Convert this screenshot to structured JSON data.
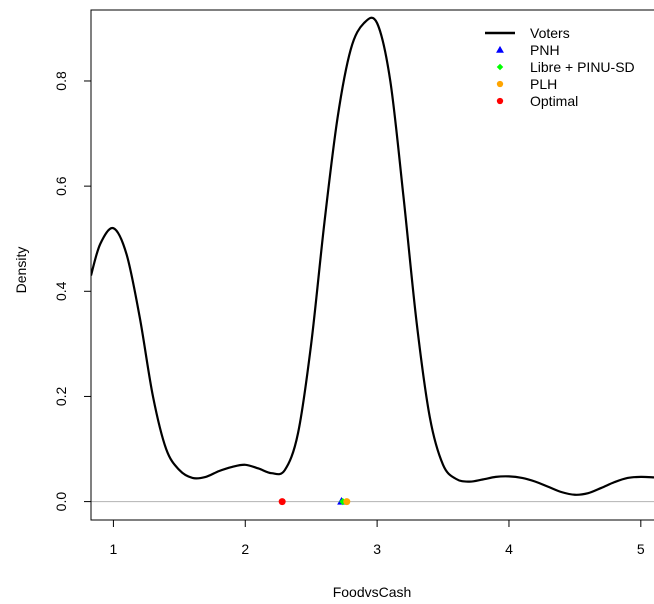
{
  "chart_data": {
    "type": "line",
    "xlabel": "FoodvsCash",
    "ylabel": "Density",
    "xlim": [
      0.83,
      5.1
    ],
    "ylim": [
      -0.035,
      0.935
    ],
    "x_ticks": [
      1,
      2,
      3,
      4,
      5
    ],
    "y_ticks": [
      0.0,
      0.2,
      0.4,
      0.6,
      0.8
    ],
    "x_tick_labels": [
      "1",
      "2",
      "3",
      "4",
      "5"
    ],
    "y_tick_labels": [
      "0.0",
      "0.2",
      "0.4",
      "0.6",
      "0.8"
    ],
    "grid": false,
    "legend_position": "top-right",
    "series": [
      {
        "name": "Voters",
        "color": "#000000",
        "x": [
          0.83,
          0.9,
          1.0,
          1.1,
          1.2,
          1.3,
          1.4,
          1.5,
          1.6,
          1.7,
          1.8,
          1.9,
          2.0,
          2.1,
          2.2,
          2.3,
          2.4,
          2.5,
          2.6,
          2.7,
          2.8,
          2.9,
          3.0,
          3.1,
          3.2,
          3.3,
          3.4,
          3.5,
          3.6,
          3.7,
          3.8,
          3.9,
          4.0,
          4.1,
          4.2,
          4.3,
          4.4,
          4.5,
          4.6,
          4.7,
          4.8,
          4.9,
          5.0,
          5.1
        ],
        "y": [
          0.43,
          0.49,
          0.52,
          0.47,
          0.35,
          0.2,
          0.1,
          0.06,
          0.045,
          0.047,
          0.058,
          0.066,
          0.07,
          0.063,
          0.054,
          0.06,
          0.13,
          0.3,
          0.53,
          0.73,
          0.86,
          0.91,
          0.91,
          0.8,
          0.58,
          0.34,
          0.16,
          0.07,
          0.043,
          0.038,
          0.042,
          0.047,
          0.048,
          0.045,
          0.038,
          0.028,
          0.018,
          0.013,
          0.016,
          0.026,
          0.037,
          0.045,
          0.047,
          0.046
        ]
      }
    ],
    "points": [
      {
        "name": "PNH",
        "x": 2.73,
        "y": 0.0,
        "shape": "triangle",
        "color": "#0000ff"
      },
      {
        "name": "Libre + PINU-SD",
        "x": 2.74,
        "y": 0.0,
        "shape": "diamond",
        "color": "#00ff00"
      },
      {
        "name": "PLH",
        "x": 2.77,
        "y": 0.0,
        "shape": "circle",
        "color": "#ffa500"
      },
      {
        "name": "Optimal",
        "x": 2.28,
        "y": 0.0,
        "shape": "circle",
        "color": "#ff0000"
      }
    ],
    "reference_line": {
      "y": 0.0,
      "color": "#b3b3b3"
    },
    "legend": [
      {
        "label": "Voters",
        "marker": "line",
        "color": "#000000"
      },
      {
        "label": "PNH",
        "marker": "triangle",
        "color": "#0000ff"
      },
      {
        "label": "Libre + PINU-SD",
        "marker": "diamond",
        "color": "#00ff00"
      },
      {
        "label": "PLH",
        "marker": "circle",
        "color": "#ffa500"
      },
      {
        "label": "Optimal",
        "marker": "circle",
        "color": "#ff0000"
      }
    ]
  }
}
